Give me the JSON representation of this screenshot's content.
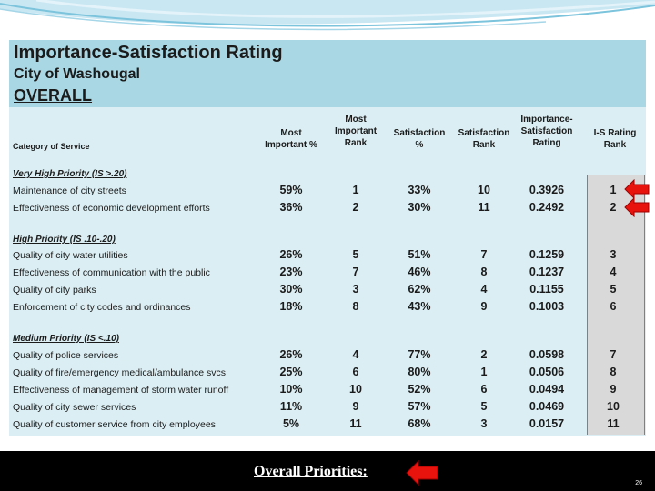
{
  "title": "Importance-Satisfaction Rating",
  "subtitle": "City of Washougal",
  "section_label": "OVERALL",
  "headers": {
    "category": "Category of Service",
    "most_important_pct": [
      "Most",
      "Important %"
    ],
    "most_important_rank": [
      "Most",
      "Important",
      "Rank"
    ],
    "satisfaction_pct": [
      "Satisfaction",
      "%"
    ],
    "satisfaction_rank": [
      "Satisfaction",
      "Rank"
    ],
    "is_rating": [
      "Importance-",
      "Satisfaction",
      "Rating"
    ],
    "is_rank": [
      "I-S Rating",
      "Rank"
    ]
  },
  "groups": [
    {
      "title": "Very High Priority (IS >.20)",
      "rows": [
        {
          "label": "Maintenance of city streets",
          "mi_pct": "59%",
          "mi_rank": "1",
          "sat_pct": "33%",
          "sat_rank": "10",
          "is_rating": "0.3926",
          "is_rank": "1"
        },
        {
          "label": "Effectiveness of economic development efforts",
          "mi_pct": "36%",
          "mi_rank": "2",
          "sat_pct": "30%",
          "sat_rank": "11",
          "is_rating": "0.2492",
          "is_rank": "2"
        }
      ]
    },
    {
      "title": "High Priority (IS .10-.20)",
      "rows": [
        {
          "label": "Quality of city water utilities",
          "mi_pct": "26%",
          "mi_rank": "5",
          "sat_pct": "51%",
          "sat_rank": "7",
          "is_rating": "0.1259",
          "is_rank": "3"
        },
        {
          "label": "Effectiveness of communication with the public",
          "mi_pct": "23%",
          "mi_rank": "7",
          "sat_pct": "46%",
          "sat_rank": "8",
          "is_rating": "0.1237",
          "is_rank": "4"
        },
        {
          "label": "Quality of city parks",
          "mi_pct": "30%",
          "mi_rank": "3",
          "sat_pct": "62%",
          "sat_rank": "4",
          "is_rating": "0.1155",
          "is_rank": "5"
        },
        {
          "label": "Enforcement of city codes and ordinances",
          "mi_pct": "18%",
          "mi_rank": "8",
          "sat_pct": "43%",
          "sat_rank": "9",
          "is_rating": "0.1003",
          "is_rank": "6"
        }
      ]
    },
    {
      "title": "Medium Priority (IS <.10)",
      "rows": [
        {
          "label": "Quality of police services",
          "mi_pct": "26%",
          "mi_rank": "4",
          "sat_pct": "77%",
          "sat_rank": "2",
          "is_rating": "0.0598",
          "is_rank": "7"
        },
        {
          "label": "Quality of fire/emergency medical/ambulance svcs",
          "mi_pct": "25%",
          "mi_rank": "6",
          "sat_pct": "80%",
          "sat_rank": "1",
          "is_rating": "0.0506",
          "is_rank": "8"
        },
        {
          "label": "Effectiveness of management of storm water runoff",
          "mi_pct": "10%",
          "mi_rank": "10",
          "sat_pct": "52%",
          "sat_rank": "6",
          "is_rating": "0.0494",
          "is_rank": "9"
        },
        {
          "label": "Quality of city sewer services",
          "mi_pct": "11%",
          "mi_rank": "9",
          "sat_pct": "57%",
          "sat_rank": "5",
          "is_rating": "0.0469",
          "is_rank": "10"
        },
        {
          "label": "Quality of customer service from city employees",
          "mi_pct": "5%",
          "mi_rank": "11",
          "sat_pct": "68%",
          "sat_rank": "3",
          "is_rating": "0.0157",
          "is_rank": "11"
        }
      ]
    }
  ],
  "footer_label": "Overall Priorities:",
  "page_number": "26",
  "colors": {
    "arrow": "#e8130c",
    "band": "#a9d8e4",
    "table_bg": "#dbeef3",
    "rank_col": "#d9d9d9",
    "footer": "#000000"
  }
}
